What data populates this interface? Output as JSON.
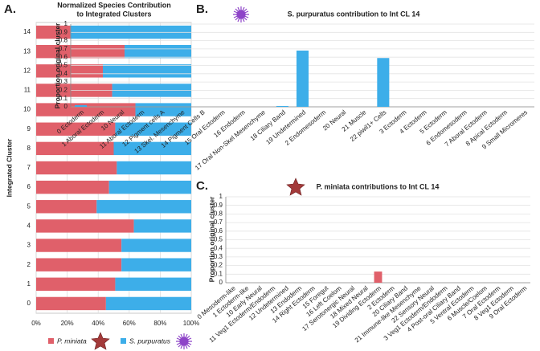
{
  "chart_data": [
    {
      "panel": "A.",
      "type": "bar",
      "orientation": "horizontal",
      "stacked": true,
      "title": [
        "Normalized Species Contribution",
        "to Integrated Clusters"
      ],
      "ylabel": "Integrated Cluster",
      "categories": [
        "0",
        "1",
        "2",
        "3",
        "4",
        "5",
        "6",
        "7",
        "8",
        "9",
        "10",
        "11",
        "12",
        "13",
        "14"
      ],
      "series": [
        {
          "name": "P. miniata",
          "color": "#e0606a",
          "values": [
            45,
            51,
            55,
            55,
            63,
            39,
            47,
            52,
            50,
            51,
            64,
            49,
            43,
            57,
            22
          ]
        },
        {
          "name": "S. purpuratus",
          "color": "#3daee9",
          "values": [
            55,
            49,
            45,
            45,
            37,
            61,
            53,
            48,
            50,
            49,
            36,
            51,
            57,
            43,
            78
          ]
        }
      ],
      "xlim": [
        0,
        100
      ],
      "xticks": [
        {
          "value": 0,
          "label": "0%"
        },
        {
          "value": 20,
          "label": "20%"
        },
        {
          "value": 40,
          "label": "40%"
        },
        {
          "value": 60,
          "label": "60%"
        },
        {
          "value": 80,
          "label": "80%"
        },
        {
          "value": 100,
          "label": "100%"
        }
      ],
      "grid": true,
      "legend": "bottom"
    },
    {
      "panel": "B.",
      "type": "bar",
      "title": "S. purpuratus contribution to Int CL 14",
      "ylabel": "Proportion original cluster",
      "categories": [
        "0 Ectoderm",
        "1 Aboral Ectoderm",
        "10 Neural",
        "11 Aboral Ectoderm",
        "12 Pigment cells A",
        "13 Skel. Mesenchyme",
        "14 Pigment Cells B",
        "15 Oral Ectoderm",
        "16 Endoderm",
        "17 Oral Non-Skel Mesenchyme",
        "18 Ciliary Band",
        "19 Undetermined",
        "2 Endomesoderm",
        "20 Neural",
        "21 Muscle",
        "22 piwil1+ Cells",
        "3 Ectoderm",
        "4 Ectoderm",
        "5 Ectoderm",
        "6 Endomesoderm",
        "7 Aboral Ectoderm",
        "8 Apical Ectoderm",
        "9 Small Micromeres"
      ],
      "values": [
        0.02,
        0,
        0,
        0,
        0,
        0,
        0,
        0,
        0,
        0,
        0.01,
        0.68,
        0,
        0,
        0,
        0.59,
        0,
        0,
        0,
        0,
        0,
        0,
        0
      ],
      "color": "#3daee9",
      "ylim": [
        0,
        1
      ],
      "yticks": [
        0,
        0.1,
        0.2,
        0.3,
        0.4,
        0.5,
        0.6,
        0.7,
        0.8,
        0.9,
        1
      ],
      "grid": true
    },
    {
      "panel": "C.",
      "type": "bar",
      "title": "P. miniata contributions to Int CL 14",
      "ylabel": "Proportion original cluster",
      "categories": [
        "0 Mesoderm-like",
        "1 Ectoderm-like",
        "10 Early Neural",
        "11 Veg1 Ectoderm/Endoderm",
        "12 Undetermined",
        "13 Endoderm",
        "14 Right Ectoderm",
        "15 Foregut",
        "16 Left Coelom",
        "17 Serotonergic Neural",
        "18 Mixed Neural",
        "19 Dividing Ectoderm",
        "2 Ectoderm",
        "20 Ciliary Band",
        "21 Immune-like Mesenchyme",
        "22 Sensory Neural",
        "3 Veg1 Ectoderm/Endoderm",
        "4 Post-oral Ciliary Band",
        "5 Ventral Ectoderm",
        "6 Muscle/Coelom",
        "7 Oral Ectoderm",
        "8 Veg1 Ectoderm",
        "9 Oral Ectoderm"
      ],
      "values": [
        0,
        0,
        0,
        0,
        0,
        0,
        0,
        0,
        0,
        0,
        0,
        0.13,
        0,
        0,
        0,
        0,
        0,
        0,
        0,
        0,
        0,
        0,
        0
      ],
      "color": "#e0606a",
      "ylim": [
        0,
        1
      ],
      "yticks": [
        0,
        0.1,
        0.2,
        0.3,
        0.4,
        0.5,
        0.6,
        0.7,
        0.8,
        0.9,
        1
      ],
      "grid": true
    }
  ]
}
